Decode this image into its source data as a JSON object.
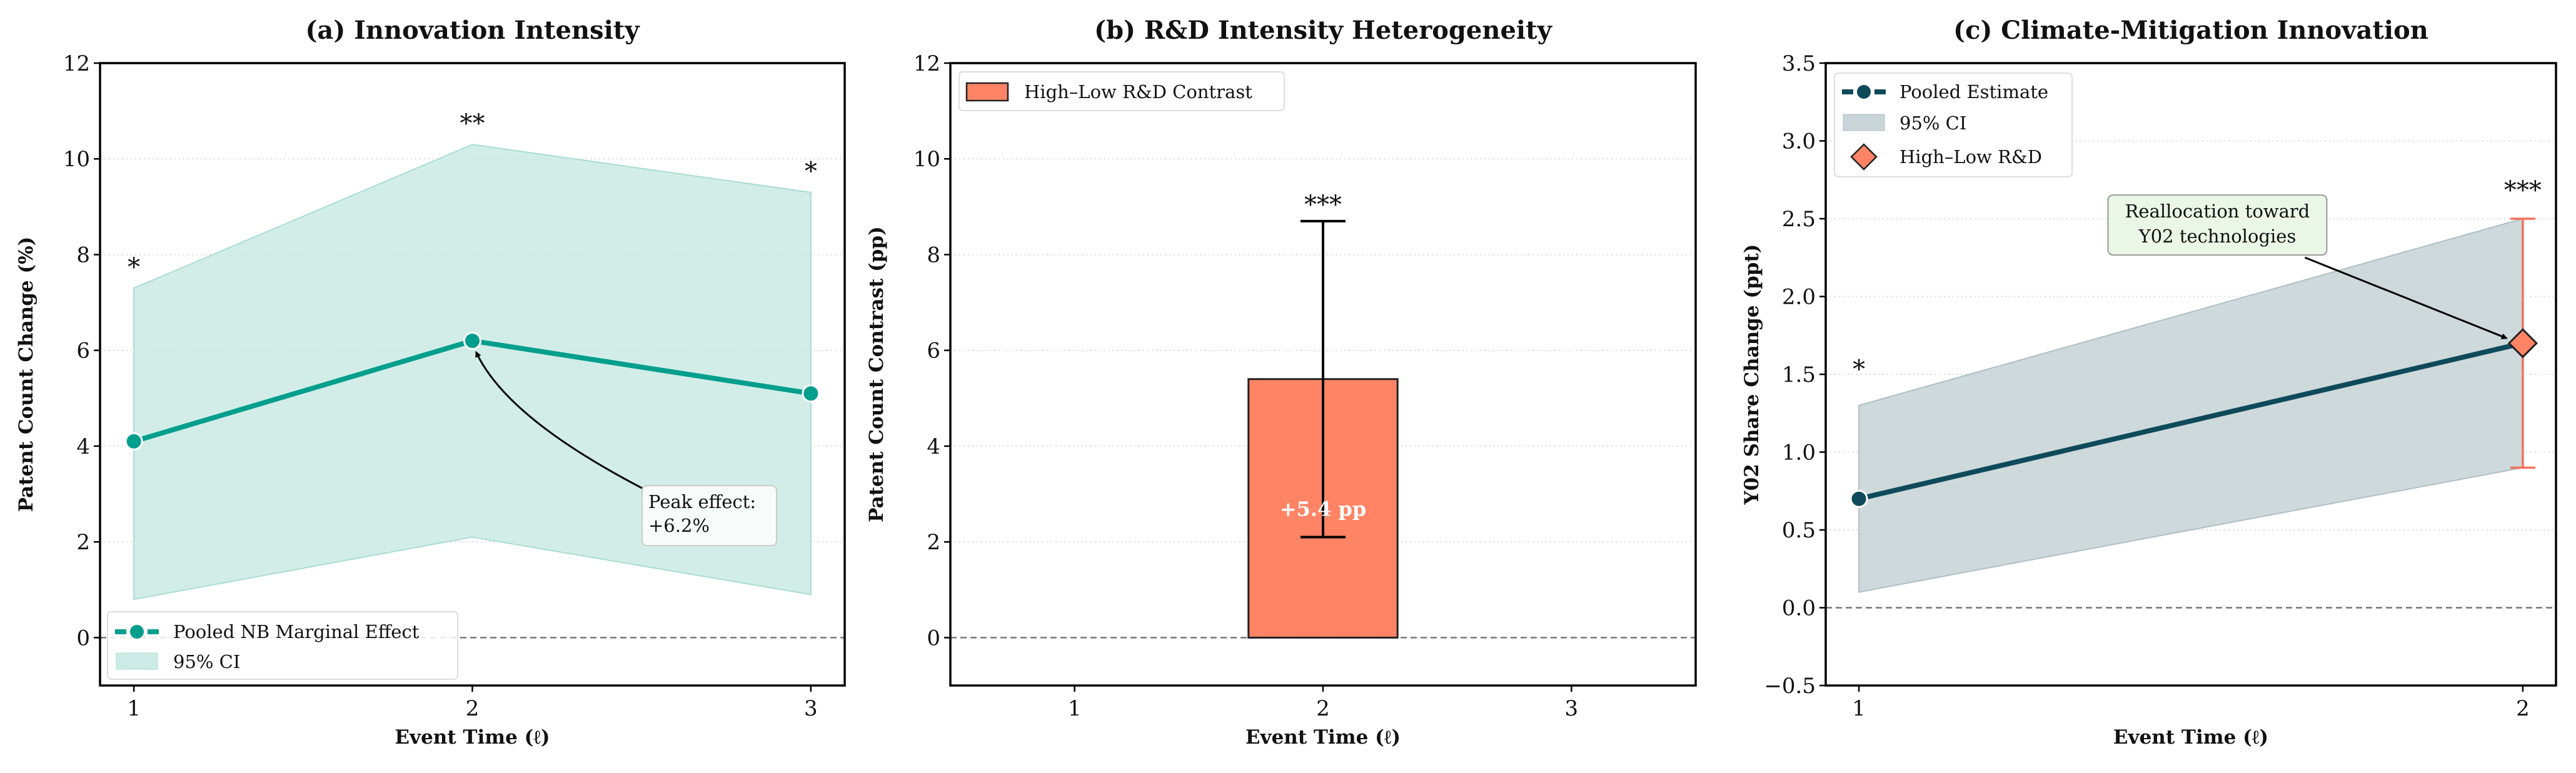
{
  "colors": {
    "teal": "#009e8c",
    "teal_fill": "#cdebe6",
    "navy": "#0e4a5a",
    "navy_fill": "#c9d5d8",
    "coral": "#ff8466",
    "coral_err": "#f4735a",
    "annot_green": "#eaf6e6"
  },
  "chart_data": [
    {
      "type": "line",
      "title": "(a) Innovation Intensity",
      "xlabel": "Event Time (ℓ)",
      "ylabel": "Patent Count Change (%)",
      "x": [
        1,
        2,
        3
      ],
      "xticks": [
        "1",
        "2",
        "3"
      ],
      "yticks": [
        "0",
        "2",
        "4",
        "6",
        "8",
        "10",
        "12"
      ],
      "xlim": [
        0.9,
        3.1
      ],
      "ylim": [
        -1,
        12
      ],
      "grid": "horizontal dotted",
      "zero_line": true,
      "series": [
        {
          "name": "Pooled NB Marginal Effect",
          "values": [
            4.1,
            6.2,
            5.1
          ],
          "ci_name": "95% CI",
          "ci_lower": [
            0.8,
            2.1,
            0.9
          ],
          "ci_upper": [
            7.3,
            10.3,
            9.3
          ]
        }
      ],
      "significance": [
        "*",
        "**",
        "*"
      ],
      "annotation": {
        "text_line1": "Peak effect:",
        "text_line2": "+6.2%",
        "x": 2,
        "y": 6.2
      },
      "legend": "lower-left"
    },
    {
      "type": "bar",
      "title": "(b) R&D Intensity Heterogeneity",
      "xlabel": "Event Time (ℓ)",
      "ylabel": "Patent Count Contrast (pp)",
      "xticks": [
        "1",
        "2",
        "3"
      ],
      "yticks": [
        "0",
        "2",
        "4",
        "6",
        "8",
        "10",
        "12"
      ],
      "xlim": [
        0.5,
        3.5
      ],
      "ylim": [
        -1,
        12
      ],
      "grid": "horizontal dotted",
      "zero_line": true,
      "series": [
        {
          "name": "High–Low R&D Contrast",
          "x": [
            2
          ],
          "values": [
            5.4
          ],
          "ci_lower": [
            2.1
          ],
          "ci_upper": [
            8.7
          ]
        }
      ],
      "significance": [
        "***"
      ],
      "data_label": "+5.4 pp",
      "legend": "top-left"
    },
    {
      "type": "line",
      "title": "(c) Climate-Mitigation Innovation",
      "xlabel": "Event Time (ℓ)",
      "ylabel": "Y02 Share Change (ppt)",
      "x": [
        1,
        2
      ],
      "xticks": [
        "1",
        "2"
      ],
      "yticks": [
        "−0.5",
        "0.0",
        "0.5",
        "1.0",
        "1.5",
        "2.0",
        "2.5",
        "3.0",
        "3.5"
      ],
      "xlim": [
        0.95,
        2.05
      ],
      "ylim": [
        -0.5,
        3.5
      ],
      "grid": "horizontal dotted",
      "zero_line": true,
      "series": [
        {
          "name": "Pooled Estimate",
          "values": [
            0.7,
            1.7
          ],
          "ci_name": "95% CI",
          "ci_lower": [
            0.1,
            0.9
          ],
          "ci_upper": [
            1.3,
            2.5
          ]
        },
        {
          "name": "High–Low R&D",
          "x": [
            2
          ],
          "values": [
            1.7
          ],
          "ci_lower": [
            0.9
          ],
          "ci_upper": [
            2.5
          ]
        }
      ],
      "significance": [
        "*",
        "***"
      ],
      "annotation": {
        "text_line1": "Reallocation toward",
        "text_line2": "Y02 technologies",
        "x": 2,
        "y": 1.7
      },
      "legend": "top-left"
    }
  ]
}
